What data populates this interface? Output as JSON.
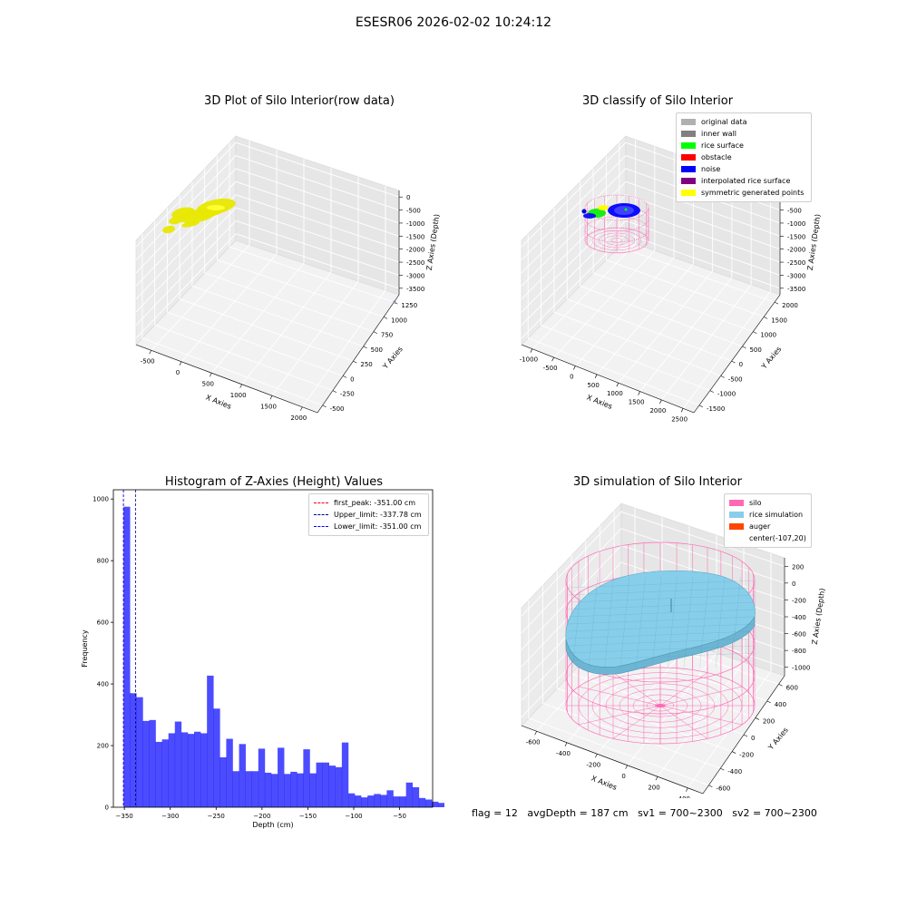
{
  "suptitle": "ESESR06 2026-02-02 10:24:12",
  "footer": {
    "flag": "flag = 12",
    "avg": "avgDepth = 187 cm",
    "sv1": "sv1 = 700~2300",
    "sv2": "sv2 = 700~2300"
  },
  "colors": {
    "silo": "#ff69b4",
    "rice_sim": "#87ceeb",
    "auger": "#ff4500",
    "raw": "#e8e800",
    "hist": "#0000ff"
  },
  "chart_data": [
    {
      "type": "scatter",
      "title": "3D Plot of Silo Interior(row data)",
      "xlabel": "X Axies",
      "ylabel": "Y Axies",
      "zlabel": "Z Axies (Depth)",
      "x_ticks": [
        "-500",
        "0",
        "500",
        "1000",
        "1500",
        "2000"
      ],
      "y_ticks": [
        "-500",
        "-250",
        "0",
        "250",
        "500",
        "750",
        "1000",
        "1250"
      ],
      "z_ticks": [
        "0",
        "-500",
        "-1000",
        "-1500",
        "-2000",
        "-2500",
        "-3000",
        "-3500"
      ]
    },
    {
      "type": "scatter",
      "title": "3D classify of Silo Interior",
      "xlabel": "X Axies",
      "ylabel": "Y Axies",
      "zlabel": "Z Axies (Depth)",
      "x_ticks": [
        "-1000",
        "-500",
        "0",
        "500",
        "1000",
        "1500",
        "2000",
        "2500"
      ],
      "y_ticks": [
        "-1500",
        "-1000",
        "-500",
        "0",
        "500",
        "1000",
        "1500",
        "2000"
      ],
      "z_ticks": [
        "0",
        "-500",
        "-1000",
        "-1500",
        "-2000",
        "-2500",
        "-3000",
        "-3500"
      ],
      "legend": [
        {
          "name": "original data",
          "color": "#b0b0b0"
        },
        {
          "name": "inner wall",
          "color": "#808080"
        },
        {
          "name": "rice surface",
          "color": "#00ff00"
        },
        {
          "name": "obstacle",
          "color": "#ff0000"
        },
        {
          "name": "noise",
          "color": "#0000ff"
        },
        {
          "name": "interpolated rice surface",
          "color": "#800080"
        },
        {
          "name": "symmetric generated points",
          "color": "#ffff00"
        }
      ],
      "legend_position": "top-right"
    },
    {
      "type": "bar",
      "title": "Histogram of Z-Axies (Height) Values",
      "xlabel": "Depth (cm)",
      "ylabel": "Frequency",
      "xlim": [
        -362,
        -14
      ],
      "ylim": [
        0,
        1030
      ],
      "x_ticks": [
        -350,
        -300,
        -250,
        -200,
        -150,
        -100,
        -50
      ],
      "y_ticks": [
        0,
        200,
        400,
        600,
        800,
        1000
      ],
      "bin_start": -351,
      "bin_width": 7,
      "values": [
        975,
        370,
        357,
        280,
        283,
        212,
        220,
        240,
        278,
        243,
        238,
        245,
        240,
        427,
        320,
        162,
        222,
        117,
        205,
        117,
        117,
        190,
        112,
        108,
        193,
        108,
        115,
        110,
        188,
        110,
        145,
        145,
        135,
        130,
        210,
        45,
        38,
        32,
        38,
        43,
        40,
        55,
        35,
        35,
        80,
        65,
        30,
        25,
        18,
        14
      ],
      "lines": [
        {
          "label": "first_peak: -351.00 cm",
          "value": -351.0,
          "color": "#ff0000"
        },
        {
          "label": "Upper_limit: -337.78 cm",
          "value": -337.78,
          "color": "#000080"
        },
        {
          "label": "Lower_limit: -351.00 cm",
          "value": -351.0,
          "color": "#0000ff"
        }
      ],
      "legend_position": "top-right"
    },
    {
      "type": "surface",
      "title": "3D simulation of Silo Interior",
      "xlabel": "X Axies",
      "ylabel": "Y Axies",
      "zlabel": "Z Axies (Depth)",
      "x_ticks": [
        "-600",
        "-400",
        "-200",
        "0",
        "200",
        "400"
      ],
      "y_ticks": [
        "-600",
        "-400",
        "-200",
        "0",
        "200",
        "400",
        "600"
      ],
      "z_ticks": [
        "200",
        "0",
        "-200",
        "-400",
        "-600",
        "-800",
        "-1000"
      ],
      "legend": [
        {
          "name": "silo",
          "color": "#ff69b4"
        },
        {
          "name": "rice simulation",
          "color": "#87ceeb"
        },
        {
          "name": "auger",
          "color": "#ff4500"
        },
        {
          "name": "center(-107,20)",
          "color": ""
        }
      ],
      "legend_position": "top-right"
    }
  ]
}
